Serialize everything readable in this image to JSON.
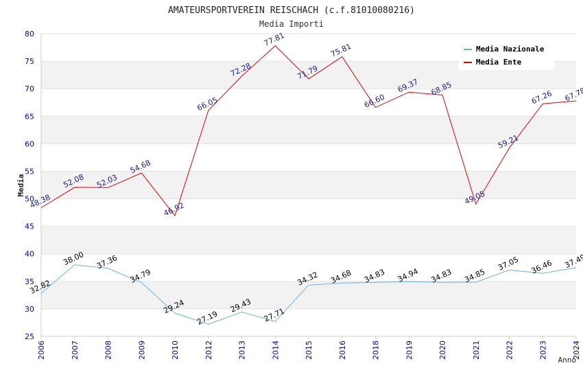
{
  "chart_data": {
    "type": "line",
    "title": "AMATEURSPORTVEREIN REISCHACH (c.f.81010080216)",
    "subtitle": "Media Importi",
    "xlabel": "Anno",
    "ylabel": "Media",
    "categories": [
      "2006",
      "2007",
      "2008",
      "2009",
      "2010",
      "2012",
      "2013",
      "2014",
      "2015",
      "2016",
      "2018",
      "2019",
      "2020",
      "2021",
      "2022",
      "2023",
      "2024"
    ],
    "ylim": [
      25,
      80
    ],
    "yticks": [
      25,
      30,
      35,
      40,
      45,
      50,
      55,
      60,
      65,
      70,
      75,
      80
    ],
    "grid": "horizontal alternating bands",
    "legend": "top-right",
    "series": [
      {
        "name": "Media Nazionale",
        "color": "#6aaee6",
        "label_color": "#000000",
        "values": [
          32.82,
          38.0,
          37.36,
          34.79,
          29.24,
          27.19,
          29.43,
          27.71,
          34.32,
          34.68,
          34.83,
          34.94,
          34.83,
          34.85,
          37.05,
          36.46,
          37.49
        ],
        "labels": [
          "32.82",
          "38.00",
          "37.36",
          "34.79",
          "29.24",
          "27.19",
          "29.43",
          "27.71",
          "34.32",
          "34.68",
          "34.83",
          "34.94",
          "34.83",
          "34.85",
          "37.05",
          "36.46",
          "37.49"
        ]
      },
      {
        "name": "Media Ente",
        "color": "#e00000",
        "label_color": "#1a1a8c",
        "values": [
          48.38,
          52.08,
          52.03,
          54.68,
          46.92,
          66.05,
          72.28,
          77.81,
          71.79,
          75.81,
          66.6,
          69.37,
          68.85,
          49.05,
          59.21,
          67.26,
          67.78
        ],
        "labels": [
          "48.38",
          "52.08",
          "52.03",
          "54.68",
          "46.92",
          "66.05",
          "72.28",
          "77.81",
          "71.79",
          "75.81",
          "66.60",
          "69.37",
          "68.85",
          "49.05",
          "59.21",
          "67.26",
          "67.78"
        ]
      }
    ]
  },
  "colors": {
    "axis_text": "#0000aa",
    "band": "#f2f2f2",
    "frame": "#cccccc"
  }
}
